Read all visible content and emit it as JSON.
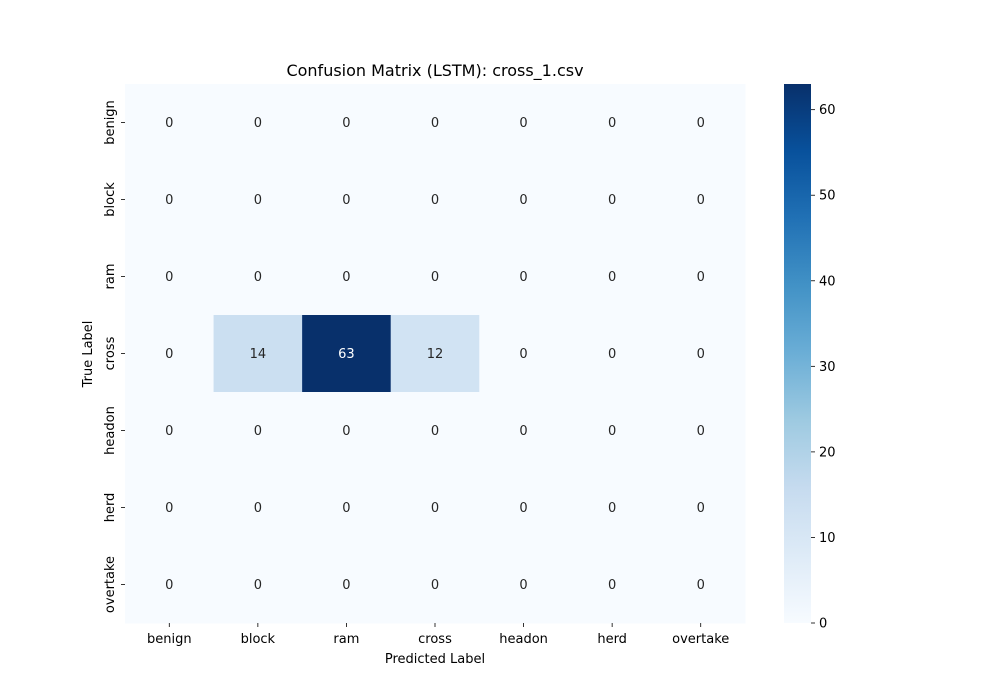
{
  "chart_data": {
    "type": "heatmap",
    "title": "Confusion Matrix (LSTM): cross_1.csv",
    "xlabel": "Predicted Label",
    "ylabel": "True Label",
    "x_categories": [
      "benign",
      "block",
      "ram",
      "cross",
      "headon",
      "herd",
      "overtake"
    ],
    "y_categories": [
      "benign",
      "block",
      "ram",
      "cross",
      "headon",
      "herd",
      "overtake"
    ],
    "values": [
      [
        0,
        0,
        0,
        0,
        0,
        0,
        0
      ],
      [
        0,
        0,
        0,
        0,
        0,
        0,
        0
      ],
      [
        0,
        0,
        0,
        0,
        0,
        0,
        0
      ],
      [
        0,
        14,
        63,
        12,
        0,
        0,
        0
      ],
      [
        0,
        0,
        0,
        0,
        0,
        0,
        0
      ],
      [
        0,
        0,
        0,
        0,
        0,
        0,
        0
      ],
      [
        0,
        0,
        0,
        0,
        0,
        0,
        0
      ]
    ],
    "colormap": "Blues",
    "colorbar": {
      "range": [
        0,
        63
      ],
      "ticks": [
        0,
        10,
        20,
        30,
        40,
        50,
        60
      ]
    }
  }
}
